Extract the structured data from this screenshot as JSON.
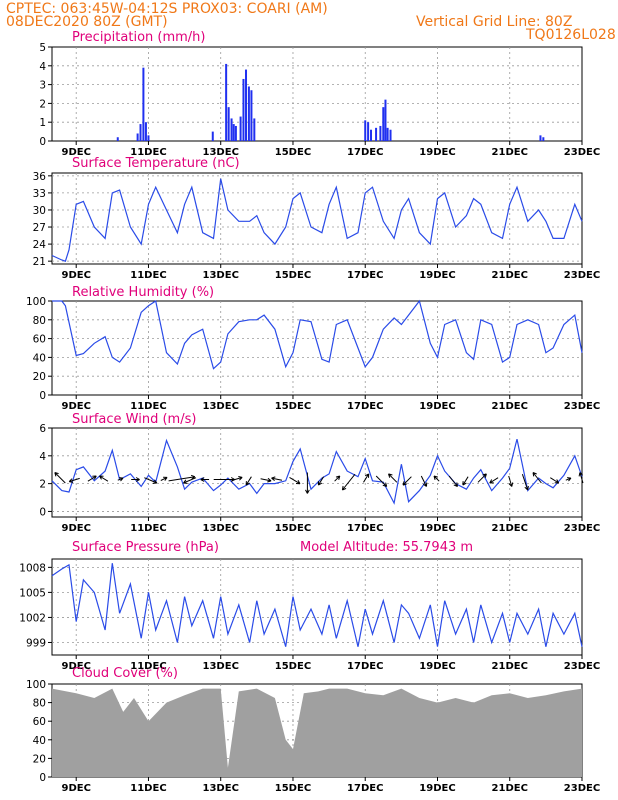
{
  "header": {
    "line1": "CPTEC:   063:45W-04:12S   PROX03: COARI (AM)",
    "line2": "08DEC2020 80Z (GMT)",
    "right1": "Vertical Grid Line: 80Z",
    "right2": "TQ0126L028"
  },
  "x_labels": [
    "9DEC",
    "11DEC",
    "13DEC",
    "15DEC",
    "17DEC",
    "19DEC",
    "21DEC",
    "23DEC"
  ],
  "colors": {
    "line": "#2a4be8",
    "bar": "#2030f0",
    "cloud": "#a0a0a0",
    "title": "#e0007a",
    "header": "#f07818"
  },
  "chart_data": [
    {
      "type": "bar",
      "title": "Precipitation (mm/h)",
      "ylim": [
        0,
        5
      ],
      "yticks": [
        "0",
        "1",
        "2",
        "3",
        "4",
        "5"
      ],
      "x_start": 8.33,
      "x_end": 23.0,
      "x": [
        10.15,
        10.7,
        10.78,
        10.86,
        10.93,
        11.0,
        12.78,
        13.15,
        13.22,
        13.3,
        13.36,
        13.42,
        13.55,
        13.63,
        13.7,
        13.78,
        13.85,
        13.93,
        17.0,
        17.08,
        17.16,
        17.3,
        17.42,
        17.5,
        17.56,
        17.62,
        17.7,
        21.85,
        21.93
      ],
      "values": [
        0.2,
        0.4,
        0.9,
        3.9,
        1.0,
        0.3,
        0.5,
        4.1,
        1.8,
        1.2,
        0.9,
        0.8,
        1.3,
        3.3,
        3.8,
        2.9,
        2.7,
        1.2,
        1.1,
        1.0,
        0.6,
        0.7,
        0.8,
        1.8,
        2.2,
        0.7,
        0.6,
        0.3,
        0.2
      ]
    },
    {
      "type": "line",
      "title": "Surface Temperature (nC)",
      "ylim": [
        20.5,
        36.5
      ],
      "yticks": [
        "21",
        "24",
        "27",
        "30",
        "33",
        "36"
      ],
      "x_start": 8.33,
      "x_end": 23.0,
      "x": [
        8.33,
        8.6,
        8.7,
        8.8,
        9.0,
        9.2,
        9.5,
        9.8,
        10.0,
        10.2,
        10.5,
        10.8,
        11.0,
        11.2,
        11.5,
        11.8,
        12.0,
        12.2,
        12.5,
        12.8,
        13.0,
        13.2,
        13.5,
        13.8,
        14.0,
        14.2,
        14.5,
        14.8,
        15.0,
        15.2,
        15.5,
        15.8,
        16.0,
        16.2,
        16.5,
        16.8,
        17.0,
        17.2,
        17.5,
        17.8,
        18.0,
        18.2,
        18.5,
        18.8,
        19.0,
        19.2,
        19.5,
        19.8,
        20.0,
        20.2,
        20.5,
        20.8,
        21.0,
        21.2,
        21.5,
        21.8,
        22.0,
        22.2,
        22.5,
        22.8,
        23.0
      ],
      "values": [
        22,
        21.2,
        21.0,
        23,
        31,
        31.5,
        27,
        25,
        33,
        33.5,
        27,
        24,
        31,
        34,
        30,
        26,
        31,
        34,
        26,
        25,
        35.5,
        30,
        28,
        28,
        29,
        26,
        24,
        27,
        32,
        33,
        27,
        26,
        31,
        34,
        25,
        26,
        33,
        34,
        28,
        25,
        30,
        32,
        26,
        24,
        32,
        33,
        27,
        29,
        32,
        31,
        26,
        25,
        31,
        34,
        28,
        30,
        28,
        25,
        25,
        31,
        28
      ]
    },
    {
      "type": "line",
      "title": "Relative Humidity (%)",
      "ylim": [
        0,
        100
      ],
      "yticks": [
        "0",
        "20",
        "40",
        "60",
        "80",
        "100"
      ],
      "x_start": 8.33,
      "x_end": 23.0,
      "x": [
        8.33,
        8.6,
        8.7,
        9.0,
        9.2,
        9.5,
        9.8,
        10.0,
        10.2,
        10.5,
        10.8,
        11.0,
        11.2,
        11.5,
        11.8,
        12.0,
        12.2,
        12.5,
        12.8,
        13.0,
        13.2,
        13.5,
        13.8,
        14.0,
        14.2,
        14.5,
        14.8,
        15.0,
        15.2,
        15.5,
        15.8,
        16.0,
        16.2,
        16.5,
        16.8,
        17.0,
        17.2,
        17.5,
        17.8,
        18.0,
        18.2,
        18.5,
        18.8,
        19.0,
        19.2,
        19.5,
        19.8,
        20.0,
        20.2,
        20.5,
        20.8,
        21.0,
        21.2,
        21.5,
        21.8,
        22.0,
        22.2,
        22.5,
        22.8,
        23.0
      ],
      "values": [
        100,
        100,
        95,
        42,
        44,
        55,
        62,
        40,
        35,
        50,
        88,
        95,
        100,
        45,
        33,
        55,
        64,
        70,
        28,
        35,
        65,
        78,
        80,
        80,
        85,
        70,
        30,
        45,
        80,
        78,
        38,
        35,
        75,
        80,
        50,
        30,
        40,
        70,
        82,
        75,
        85,
        100,
        55,
        40,
        75,
        80,
        45,
        38,
        80,
        75,
        35,
        40,
        75,
        80,
        75,
        45,
        50,
        75,
        85,
        45
      ]
    },
    {
      "type": "line",
      "title": "Surface Wind (m/s)",
      "ylim": [
        -0.4,
        6
      ],
      "yticks": [
        "0",
        "2",
        "4",
        "6"
      ],
      "x_start": 8.33,
      "x_end": 23.0,
      "x": [
        8.33,
        8.6,
        8.8,
        9.0,
        9.2,
        9.5,
        9.8,
        10.0,
        10.2,
        10.5,
        10.8,
        11.0,
        11.2,
        11.5,
        11.8,
        12.0,
        12.2,
        12.5,
        12.8,
        13.0,
        13.2,
        13.5,
        13.8,
        14.0,
        14.2,
        14.5,
        14.8,
        15.0,
        15.2,
        15.5,
        15.8,
        16.0,
        16.2,
        16.5,
        16.8,
        17.0,
        17.2,
        17.5,
        17.8,
        18.0,
        18.2,
        18.5,
        18.8,
        19.0,
        19.2,
        19.5,
        19.8,
        20.0,
        20.2,
        20.5,
        20.8,
        21.0,
        21.2,
        21.5,
        21.8,
        22.0,
        22.2,
        22.5,
        22.8,
        23.0
      ],
      "values": [
        2.2,
        1.5,
        1.4,
        3.0,
        3.2,
        2.2,
        2.9,
        4.4,
        2.3,
        2.7,
        1.8,
        2.6,
        2.1,
        5.1,
        3.2,
        1.6,
        2.1,
        2.4,
        1.5,
        1.9,
        2.4,
        1.6,
        2.0,
        1.3,
        2.0,
        2.0,
        2.2,
        3.6,
        4.5,
        1.6,
        2.4,
        2.7,
        4.3,
        2.9,
        2.5,
        3.8,
        2.2,
        2.1,
        0.6,
        3.4,
        0.7,
        1.5,
        2.6,
        4.0,
        2.9,
        2.0,
        1.6,
        2.4,
        3.0,
        1.5,
        2.4,
        3.1,
        5.2,
        1.5,
        2.4,
        2.0,
        1.7,
        2.6,
        4.0,
        2.5
      ],
      "arrows_x": [
        8.6,
        9.0,
        9.4,
        9.8,
        10.2,
        10.6,
        11.0,
        11.4,
        11.8,
        12.2,
        12.6,
        13.0,
        13.4,
        13.8,
        14.2,
        14.6,
        15.0,
        15.4,
        15.8,
        16.2,
        16.6,
        17.0,
        17.4,
        17.8,
        18.2,
        18.6,
        19.0,
        19.4,
        19.8,
        20.2,
        20.6,
        21.0,
        21.4,
        21.8,
        22.2,
        22.6,
        23.0
      ],
      "arrows_u": [
        -1.0,
        -1.0,
        0.8,
        -0.8,
        0.5,
        0.8,
        1.2,
        0.6,
        2.5,
        -1.2,
        -0.8,
        2.0,
        1.0,
        -0.5,
        1.0,
        -1.0,
        1.0,
        0.0,
        -0.5,
        0.5,
        -1.2,
        0.5,
        1.0,
        -0.8,
        -0.8,
        0.5,
        -0.5,
        0.8,
        -0.5,
        0.8,
        -0.8,
        0.3,
        0.5,
        -0.8,
        0.8,
        0.5,
        -0.3
      ],
      "arrows_v": [
        1.0,
        -0.3,
        0.5,
        0.5,
        0.2,
        0.0,
        -0.5,
        0.3,
        0.4,
        -0.5,
        0.0,
        0.0,
        0.3,
        -0.8,
        -0.2,
        0.2,
        -0.6,
        -2.0,
        -0.8,
        0.5,
        -1.5,
        0.8,
        -1.0,
        0.8,
        -0.8,
        -1.0,
        0.5,
        -1.0,
        -0.8,
        0.8,
        -0.5,
        -1.0,
        -1.5,
        1.0,
        -0.5,
        0.2,
        1.0
      ]
    },
    {
      "type": "line",
      "title": "Surface Pressure (hPa)",
      "annotation": "Model Altitude: 55.7943 m",
      "ylim": [
        997.5,
        1009
      ],
      "yticks": [
        "999",
        "1002",
        "1005",
        "1008"
      ],
      "x_start": 8.33,
      "x_end": 23.0,
      "x": [
        8.33,
        8.6,
        8.8,
        9.0,
        9.2,
        9.5,
        9.8,
        10.0,
        10.2,
        10.5,
        10.8,
        11.0,
        11.2,
        11.5,
        11.8,
        12.0,
        12.2,
        12.5,
        12.8,
        13.0,
        13.2,
        13.5,
        13.8,
        14.0,
        14.2,
        14.5,
        14.8,
        15.0,
        15.2,
        15.5,
        15.8,
        16.0,
        16.2,
        16.5,
        16.8,
        17.0,
        17.2,
        17.5,
        17.8,
        18.0,
        18.2,
        18.5,
        18.8,
        19.0,
        19.2,
        19.5,
        19.8,
        20.0,
        20.2,
        20.5,
        20.8,
        21.0,
        21.2,
        21.5,
        21.8,
        22.0,
        22.2,
        22.5,
        22.8,
        23.0
      ],
      "values": [
        1007,
        1007.8,
        1008.3,
        1001.5,
        1006.5,
        1005,
        1000.5,
        1008.5,
        1002.5,
        1006,
        999.5,
        1005,
        1000.5,
        1004,
        999,
        1004.5,
        1001,
        1004,
        999.5,
        1004.5,
        1000,
        1003.5,
        999,
        1004,
        1000,
        1003,
        998.5,
        1004.5,
        1000.5,
        1003,
        1000,
        1003.5,
        999.5,
        1004,
        998.5,
        1003,
        1000,
        1004,
        999,
        1003.5,
        1002.5,
        999.5,
        1003.5,
        998.5,
        1004,
        1000,
        1003,
        999,
        1003.5,
        999,
        1002.5,
        999,
        1002.5,
        1000,
        1003,
        998.5,
        1002.5,
        1000,
        1002.5,
        998.5
      ]
    },
    {
      "type": "area",
      "title": "Cloud Cover (%)",
      "ylim": [
        0,
        100
      ],
      "yticks": [
        "0",
        "20",
        "40",
        "60",
        "80",
        "100"
      ],
      "x_start": 8.33,
      "x_end": 23.0,
      "x": [
        8.33,
        9.0,
        9.5,
        10.0,
        10.3,
        10.6,
        11.0,
        11.5,
        12.0,
        12.5,
        13.0,
        13.2,
        13.5,
        14.0,
        14.5,
        14.8,
        15.0,
        15.3,
        15.7,
        16.0,
        16.5,
        17.0,
        17.5,
        18.0,
        18.5,
        19.0,
        19.5,
        20.0,
        20.5,
        21.0,
        21.5,
        22.0,
        22.5,
        23.0
      ],
      "values": [
        95,
        90,
        85,
        95,
        70,
        85,
        60,
        80,
        88,
        95,
        95,
        10,
        92,
        95,
        85,
        40,
        30,
        90,
        92,
        95,
        95,
        90,
        88,
        95,
        85,
        80,
        85,
        80,
        88,
        90,
        85,
        88,
        92,
        95
      ]
    }
  ]
}
